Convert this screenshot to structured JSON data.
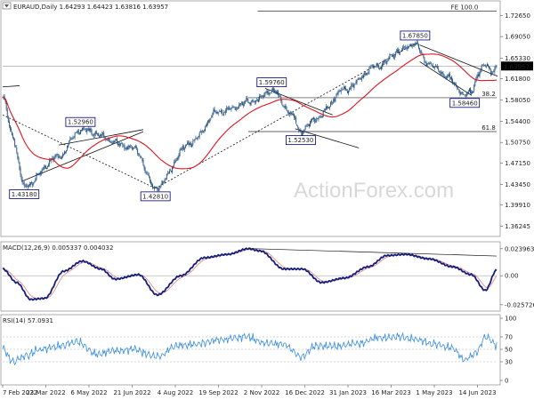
{
  "chart_data": [
    {
      "type": "candlestick",
      "title": "EURAUD,Daily",
      "quote": {
        "o": "1.64293",
        "h": "1.64423",
        "l": "1.63816",
        "c": "1.63957"
      },
      "current_price": "1.63957",
      "y_ticks": [
        "1.72650",
        "1.69050",
        "1.65330",
        "1.61800",
        "1.58050",
        "1.54400",
        "1.50750",
        "1.47150",
        "1.43450",
        "1.39910",
        "1.36245"
      ],
      "x_ticks": [
        "7 Feb 2022",
        "23 Mar 2022",
        "6 May 2022",
        "21 Jun 2022",
        "4 Aug 2022",
        "19 Sep 2022",
        "2 Nov 2022",
        "16 Dec 2022",
        "31 Jan 2023",
        "16 Mar 2023",
        "1 May 2023",
        "14 Jun 2023"
      ],
      "ylim": [
        1.3495,
        1.7476
      ],
      "anchors": [
        [
          0,
          1.585
        ],
        [
          10,
          1.52
        ],
        [
          23,
          1.4318
        ],
        [
          60,
          1.4835
        ],
        [
          83,
          1.529
        ],
        [
          140,
          1.4981
        ],
        [
          163,
          1.4281
        ],
        [
          200,
          1.5063
        ],
        [
          230,
          1.56
        ],
        [
          270,
          1.58
        ],
        [
          287,
          1.5976
        ],
        [
          309,
          1.5555
        ],
        [
          318,
          1.5253
        ],
        [
          335,
          1.55
        ],
        [
          365,
          1.6
        ],
        [
          400,
          1.64
        ],
        [
          425,
          1.6665
        ],
        [
          440,
          1.6785
        ],
        [
          453,
          1.644
        ],
        [
          474,
          1.6228
        ],
        [
          484,
          1.6035
        ],
        [
          493,
          1.5896
        ],
        [
          500,
          1.5946
        ],
        [
          507,
          1.625
        ],
        [
          514,
          1.6415
        ],
        [
          523,
          1.6302
        ],
        [
          527,
          1.6396
        ]
      ],
      "swing_labels": [
        {
          "text": "1.43180",
          "i": 23,
          "side": "below"
        },
        {
          "text": "1.52960",
          "i": 83,
          "side": "above"
        },
        {
          "text": "1.42810",
          "i": 163,
          "side": "below"
        },
        {
          "text": "1.59760",
          "i": 287,
          "side": "above"
        },
        {
          "text": "1.52530",
          "i": 318,
          "side": "below"
        },
        {
          "text": "1.67850",
          "i": 440,
          "side": "above"
        },
        {
          "text": "1.58460",
          "i": 493,
          "side": "below"
        }
      ],
      "levels": [
        {
          "name": "FE 100.0",
          "value": 1.7343
        },
        {
          "name": "38.2",
          "value": 1.5848
        },
        {
          "name": "61.8",
          "value": 1.5263
        }
      ],
      "macd": {
        "label": "MACD(12,26,9) 0.005337 0.004032",
        "ylim": [
          -0.029,
          0.027
        ],
        "ticks": [
          "0.023963",
          "0.00",
          "-0.025726"
        ],
        "anchors": [
          [
            0,
            0.006
          ],
          [
            15,
            -0.006
          ],
          [
            30,
            -0.021
          ],
          [
            45,
            -0.02
          ],
          [
            65,
            0.004
          ],
          [
            85,
            0.013
          ],
          [
            105,
            0.006
          ],
          [
            120,
            -0.003
          ],
          [
            145,
            0.001
          ],
          [
            165,
            -0.017
          ],
          [
            190,
            0.0
          ],
          [
            215,
            0.016
          ],
          [
            240,
            0.019
          ],
          [
            262,
            0.024
          ],
          [
            275,
            0.022
          ],
          [
            300,
            0.006
          ],
          [
            320,
            0.006
          ],
          [
            340,
            -0.006
          ],
          [
            365,
            -0.002
          ],
          [
            390,
            0.008
          ],
          [
            410,
            0.018
          ],
          [
            430,
            0.019
          ],
          [
            455,
            0.015
          ],
          [
            480,
            0.008
          ],
          [
            500,
            0.001
          ],
          [
            515,
            -0.013
          ],
          [
            527,
            0.005
          ]
        ]
      },
      "rsi": {
        "label": "RSI(14) 57.0931",
        "ylim": [
          0,
          100
        ],
        "ticks": [
          "100",
          "70",
          "50",
          "30",
          "0"
        ],
        "anchors": [
          [
            0,
            52
          ],
          [
            10,
            30
          ],
          [
            25,
            40
          ],
          [
            40,
            50
          ],
          [
            60,
            55
          ],
          [
            80,
            62
          ],
          [
            100,
            42
          ],
          [
            120,
            48
          ],
          [
            140,
            50
          ],
          [
            165,
            38
          ],
          [
            185,
            55
          ],
          [
            205,
            58
          ],
          [
            230,
            65
          ],
          [
            260,
            70
          ],
          [
            280,
            60
          ],
          [
            300,
            58
          ],
          [
            318,
            38
          ],
          [
            335,
            55
          ],
          [
            355,
            55
          ],
          [
            380,
            60
          ],
          [
            400,
            68
          ],
          [
            425,
            70
          ],
          [
            440,
            66
          ],
          [
            460,
            58
          ],
          [
            480,
            52
          ],
          [
            493,
            33
          ],
          [
            505,
            44
          ],
          [
            515,
            70
          ],
          [
            527,
            57
          ]
        ]
      }
    }
  ],
  "watermark": "ActionForex.com"
}
